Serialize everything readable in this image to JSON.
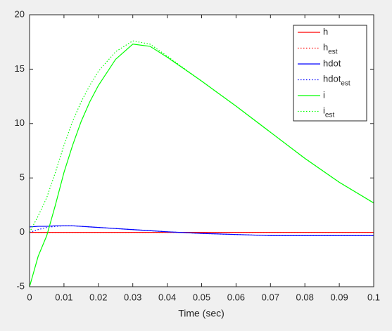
{
  "chart_data": {
    "type": "line",
    "xlabel": "Time (sec)",
    "x": [
      0,
      0.0025,
      0.005,
      0.0075,
      0.01,
      0.0125,
      0.015,
      0.0175,
      0.02,
      0.025,
      0.03,
      0.035,
      0.04,
      0.05,
      0.06,
      0.07,
      0.08,
      0.09,
      0.1
    ],
    "series": [
      {
        "name": "h",
        "color": "#ff0000",
        "style": "solid",
        "values": [
          0,
          0,
          0,
          0,
          0,
          0,
          0,
          0,
          0,
          0,
          0,
          0,
          0,
          0,
          0,
          0,
          0,
          0,
          0
        ]
      },
      {
        "name": "h_{est}",
        "color": "#ff0000",
        "style": "dotted",
        "values": [
          0,
          0,
          0,
          0,
          0,
          0,
          0,
          0,
          0,
          0,
          0,
          0,
          0,
          0,
          0,
          0,
          0,
          0,
          0
        ]
      },
      {
        "name": "hdot",
        "color": "#0000ff",
        "style": "solid",
        "values": [
          0.5,
          0.55,
          0.55,
          0.6,
          0.6,
          0.6,
          0.55,
          0.5,
          0.45,
          0.35,
          0.25,
          0.15,
          0.05,
          -0.1,
          -0.2,
          -0.3,
          -0.3,
          -0.3,
          -0.3
        ]
      },
      {
        "name": "hdot_{est}",
        "color": "#0000ff",
        "style": "dotted",
        "values": [
          0,
          0.25,
          0.45,
          0.55,
          0.6,
          0.6,
          0.55,
          0.5,
          0.45,
          0.35,
          0.25,
          0.15,
          0.05,
          -0.1,
          -0.2,
          -0.3,
          -0.3,
          -0.3,
          -0.3
        ]
      },
      {
        "name": "i",
        "color": "#00ff00",
        "style": "solid",
        "values": [
          -5,
          -2.2,
          -0.3,
          2.5,
          5.5,
          8,
          10.2,
          12,
          13.5,
          15.9,
          17.3,
          17.1,
          16.1,
          13.9,
          11.6,
          9.2,
          6.8,
          4.6,
          2.7
        ]
      },
      {
        "name": "i_{est}",
        "color": "#00ff00",
        "style": "dotted",
        "values": [
          0,
          1.5,
          3.2,
          5.5,
          8,
          10.2,
          12,
          13.5,
          14.8,
          16.6,
          17.6,
          17.3,
          16.2,
          13.9,
          11.6,
          9.2,
          6.8,
          4.6,
          2.7
        ]
      }
    ],
    "xlim": [
      0,
      0.1
    ],
    "xticks": [
      0,
      0.01,
      0.02,
      0.03,
      0.04,
      0.05,
      0.06,
      0.07,
      0.08,
      0.09,
      0.1
    ],
    "ylim": [
      -5,
      20
    ],
    "yticks": [
      -5,
      0,
      5,
      10,
      15,
      20
    ],
    "legend": "northeast"
  }
}
